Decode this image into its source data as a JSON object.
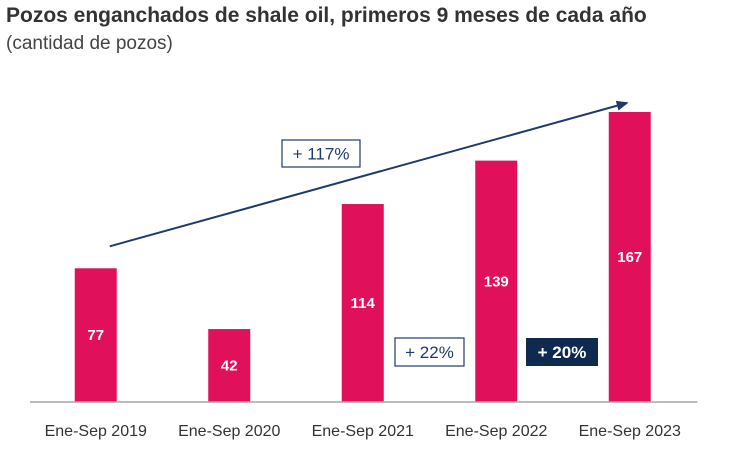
{
  "colors": {
    "bar": "#e0105a",
    "arrow": "#1f3b6b",
    "axis": "#a6a6a6",
    "dark_box": "#0e2a4f"
  },
  "chart_data": {
    "type": "bar",
    "title": "Pozos enganchados de shale oil, primeros 9 meses de cada año",
    "subtitle": "(cantidad de pozos)",
    "categories": [
      "Ene-Sep 2019",
      "Ene-Sep 2020",
      "Ene-Sep 2021",
      "Ene-Sep 2022",
      "Ene-Sep 2023"
    ],
    "values": [
      77,
      42,
      114,
      139,
      167
    ],
    "ylim": [
      0,
      170
    ],
    "xlabel": "",
    "ylabel": "",
    "grid": false,
    "annotations": {
      "trend": "+ 117%",
      "change_2022": "+ 22%",
      "change_2023": "+ 20%"
    }
  }
}
